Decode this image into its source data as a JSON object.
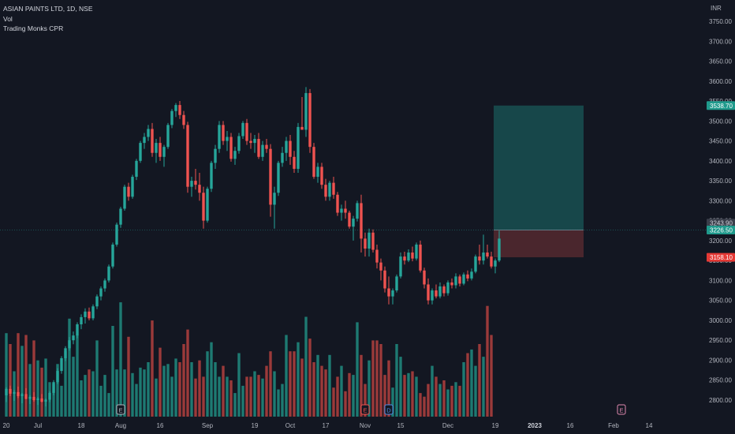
{
  "legend": {
    "symbol_line": "ASIAN PAINTS LTD, 1D, NSE",
    "volume_line": "Vol",
    "indicator_line": "Trading Monks CPR"
  },
  "colors": {
    "background": "#131722",
    "up": "#26a69a",
    "down": "#ef5350",
    "vol_up": "#1e7a72",
    "vol_down": "#9b3a3a",
    "target_zone": "#17474a",
    "stop_zone": "#4a262d",
    "axis_text": "#b2b5be"
  },
  "chart_data": {
    "type": "candlestick",
    "currency_label": "INR",
    "y_ticks": [
      "3750.00",
      "3700.00",
      "3650.00",
      "3600.00",
      "3550.00",
      "3500.00",
      "3450.00",
      "3400.00",
      "3350.00",
      "3300.00",
      "3250.00",
      "3200.00",
      "3150.00",
      "3100.00",
      "3050.00",
      "3000.00",
      "2950.00",
      "2900.00",
      "2850.00",
      "2800.00"
    ],
    "ylim": [
      2780,
      3775
    ],
    "x_ticks": [
      {
        "label": "20",
        "i": 0
      },
      {
        "label": "Jul",
        "i": 8
      },
      {
        "label": "18",
        "i": 19
      },
      {
        "label": "Aug",
        "i": 29
      },
      {
        "label": "16",
        "i": 39
      },
      {
        "label": "Sep",
        "i": 51
      },
      {
        "label": "19",
        "i": 63
      },
      {
        "label": "Oct",
        "i": 72
      },
      {
        "label": "17",
        "i": 81
      },
      {
        "label": "Nov",
        "i": 91
      },
      {
        "label": "15",
        "i": 100
      },
      {
        "label": "Dec",
        "i": 112
      },
      {
        "label": "19",
        "i": 124
      },
      {
        "label": "2023",
        "i": 134
      },
      {
        "label": "16",
        "i": 143
      },
      {
        "label": "Feb",
        "i": 154
      },
      {
        "label": "14",
        "i": 163
      }
    ],
    "candles": [
      [
        2812,
        2832,
        2795,
        2828
      ],
      [
        2828,
        2836,
        2810,
        2816
      ],
      [
        2816,
        2825,
        2798,
        2820
      ],
      [
        2820,
        2834,
        2805,
        2810
      ],
      [
        2810,
        2818,
        2792,
        2815
      ],
      [
        2815,
        2830,
        2802,
        2803
      ],
      [
        2803,
        2812,
        2790,
        2808
      ],
      [
        2808,
        2820,
        2796,
        2800
      ],
      [
        2800,
        2808,
        2788,
        2804
      ],
      [
        2804,
        2815,
        2794,
        2796
      ],
      [
        2796,
        2804,
        2784,
        2801
      ],
      [
        2801,
        2822,
        2795,
        2818
      ],
      [
        2818,
        2850,
        2812,
        2845
      ],
      [
        2845,
        2880,
        2840,
        2873
      ],
      [
        2873,
        2910,
        2866,
        2905
      ],
      [
        2905,
        2935,
        2898,
        2930
      ],
      [
        2930,
        2958,
        2924,
        2950
      ],
      [
        2950,
        2972,
        2940,
        2962
      ],
      [
        2962,
        2995,
        2955,
        2990
      ],
      [
        2990,
        3015,
        2978,
        3008
      ],
      [
        3008,
        3030,
        2992,
        3022
      ],
      [
        3022,
        3032,
        3000,
        3005
      ],
      [
        3005,
        3040,
        3000,
        3035
      ],
      [
        3035,
        3065,
        3028,
        3060
      ],
      [
        3060,
        3085,
        3050,
        3080
      ],
      [
        3080,
        3105,
        3072,
        3100
      ],
      [
        3100,
        3140,
        3095,
        3135
      ],
      [
        3135,
        3195,
        3130,
        3190
      ],
      [
        3190,
        3245,
        3185,
        3240
      ],
      [
        3240,
        3285,
        3232,
        3280
      ],
      [
        3280,
        3340,
        3275,
        3335
      ],
      [
        3335,
        3345,
        3300,
        3310
      ],
      [
        3310,
        3365,
        3305,
        3360
      ],
      [
        3360,
        3405,
        3352,
        3400
      ],
      [
        3400,
        3450,
        3395,
        3445
      ],
      [
        3445,
        3470,
        3430,
        3460
      ],
      [
        3460,
        3490,
        3450,
        3480
      ],
      [
        3480,
        3495,
        3410,
        3420
      ],
      [
        3420,
        3455,
        3395,
        3445
      ],
      [
        3445,
        3460,
        3400,
        3410
      ],
      [
        3410,
        3440,
        3385,
        3435
      ],
      [
        3435,
        3495,
        3430,
        3490
      ],
      [
        3490,
        3530,
        3482,
        3525
      ],
      [
        3525,
        3545,
        3510,
        3540
      ],
      [
        3540,
        3550,
        3505,
        3515
      ],
      [
        3515,
        3525,
        3480,
        3490
      ],
      [
        3490,
        3498,
        3320,
        3335
      ],
      [
        3335,
        3360,
        3310,
        3350
      ],
      [
        3350,
        3380,
        3328,
        3340
      ],
      [
        3340,
        3370,
        3300,
        3320
      ],
      [
        3320,
        3335,
        3230,
        3250
      ],
      [
        3250,
        3335,
        3245,
        3330
      ],
      [
        3330,
        3400,
        3322,
        3395
      ],
      [
        3395,
        3440,
        3380,
        3430
      ],
      [
        3430,
        3500,
        3420,
        3490
      ],
      [
        3490,
        3500,
        3440,
        3450
      ],
      [
        3450,
        3475,
        3425,
        3460
      ],
      [
        3460,
        3470,
        3398,
        3405
      ],
      [
        3405,
        3435,
        3390,
        3425
      ],
      [
        3425,
        3470,
        3418,
        3462
      ],
      [
        3462,
        3500,
        3455,
        3495
      ],
      [
        3495,
        3505,
        3440,
        3450
      ],
      [
        3450,
        3470,
        3430,
        3445
      ],
      [
        3445,
        3465,
        3420,
        3455
      ],
      [
        3455,
        3470,
        3405,
        3410
      ],
      [
        3410,
        3450,
        3400,
        3440
      ],
      [
        3440,
        3455,
        3420,
        3430
      ],
      [
        3430,
        3442,
        3260,
        3290
      ],
      [
        3290,
        3335,
        3230,
        3320
      ],
      [
        3320,
        3400,
        3312,
        3395
      ],
      [
        3395,
        3435,
        3385,
        3420
      ],
      [
        3420,
        3460,
        3400,
        3450
      ],
      [
        3450,
        3465,
        3390,
        3410
      ],
      [
        3410,
        3425,
        3370,
        3380
      ],
      [
        3380,
        3495,
        3370,
        3485
      ],
      [
        3485,
        3560,
        3478,
        3478
      ],
      [
        3478,
        3585,
        3460,
        3570
      ],
      [
        3570,
        3580,
        3420,
        3435
      ],
      [
        3435,
        3445,
        3355,
        3360
      ],
      [
        3360,
        3395,
        3345,
        3385
      ],
      [
        3385,
        3395,
        3330,
        3340
      ],
      [
        3340,
        3355,
        3300,
        3310
      ],
      [
        3310,
        3350,
        3300,
        3345
      ],
      [
        3345,
        3360,
        3305,
        3315
      ],
      [
        3315,
        3322,
        3262,
        3270
      ],
      [
        3270,
        3290,
        3250,
        3280
      ],
      [
        3280,
        3300,
        3255,
        3270
      ],
      [
        3270,
        3275,
        3230,
        3235
      ],
      [
        3235,
        3262,
        3200,
        3255
      ],
      [
        3255,
        3300,
        3248,
        3294
      ],
      [
        3294,
        3315,
        3170,
        3205
      ],
      [
        3205,
        3220,
        3160,
        3180
      ],
      [
        3180,
        3230,
        3160,
        3220
      ],
      [
        3220,
        3228,
        3170,
        3177
      ],
      [
        3177,
        3190,
        3130,
        3145
      ],
      [
        3145,
        3155,
        3100,
        3125
      ],
      [
        3125,
        3135,
        3070,
        3080
      ],
      [
        3080,
        3110,
        3040,
        3060
      ],
      [
        3060,
        3080,
        3040,
        3075
      ],
      [
        3075,
        3115,
        3070,
        3110
      ],
      [
        3110,
        3170,
        3105,
        3160
      ],
      [
        3160,
        3172,
        3140,
        3150
      ],
      [
        3150,
        3178,
        3146,
        3170
      ],
      [
        3170,
        3185,
        3148,
        3155
      ],
      [
        3155,
        3195,
        3150,
        3190
      ],
      [
        3190,
        3200,
        3120,
        3125
      ],
      [
        3125,
        3132,
        3080,
        3090
      ],
      [
        3090,
        3105,
        3040,
        3050
      ],
      [
        3050,
        3080,
        3040,
        3075
      ],
      [
        3075,
        3090,
        3055,
        3060
      ],
      [
        3060,
        3095,
        3055,
        3085
      ],
      [
        3085,
        3090,
        3060,
        3068
      ],
      [
        3068,
        3100,
        3062,
        3095
      ],
      [
        3095,
        3105,
        3080,
        3088
      ],
      [
        3088,
        3118,
        3080,
        3110
      ],
      [
        3110,
        3115,
        3085,
        3092
      ],
      [
        3092,
        3120,
        3088,
        3115
      ],
      [
        3115,
        3125,
        3098,
        3105
      ],
      [
        3105,
        3130,
        3100,
        3122
      ],
      [
        3122,
        3165,
        3118,
        3160
      ],
      [
        3160,
        3190,
        3140,
        3150
      ],
      [
        3150,
        3215,
        3140,
        3170
      ],
      [
        3170,
        3190,
        3155,
        3160
      ],
      [
        3160,
        3172,
        3130,
        3135
      ],
      [
        3135,
        3155,
        3118,
        3150
      ],
      [
        3150,
        3225,
        3146,
        3205
      ]
    ],
    "volume": [
      0.46,
      0.4,
      0.25,
      0.46,
      0.39,
      0.45,
      0.29,
      0.42,
      0.31,
      0.27,
      0.32,
      0.19,
      0.18,
      0.29,
      0.17,
      0.36,
      0.54,
      0.33,
      0.45,
      0.2,
      0.23,
      0.26,
      0.25,
      0.42,
      0.17,
      0.23,
      0.13,
      0.5,
      0.26,
      0.63,
      0.26,
      0.44,
      0.24,
      0.18,
      0.27,
      0.26,
      0.3,
      0.53,
      0.21,
      0.38,
      0.28,
      0.29,
      0.22,
      0.32,
      0.3,
      0.4,
      0.48,
      0.3,
      0.21,
      0.31,
      0.22,
      0.36,
      0.41,
      0.3,
      0.22,
      0.28,
      0.22,
      0.2,
      0.13,
      0.35,
      0.17,
      0.22,
      0.22,
      0.25,
      0.23,
      0.21,
      0.28,
      0.36,
      0.25,
      0.15,
      0.18,
      0.45,
      0.36,
      0.36,
      0.41,
      0.32,
      0.55,
      0.43,
      0.3,
      0.34,
      0.28,
      0.26,
      0.34,
      0.16,
      0.22,
      0.28,
      0.14,
      0.24,
      0.23,
      0.52,
      0.34,
      0.18,
      0.31,
      0.42,
      0.42,
      0.4,
      0.23,
      0.31,
      0.16,
      0.4,
      0.33,
      0.23,
      0.24,
      0.25,
      0.22,
      0.13,
      0.11,
      0.18,
      0.28,
      0.22,
      0.18,
      0.2,
      0.15,
      0.17,
      0.19,
      0.17,
      0.3,
      0.35,
      0.37,
      0.28,
      0.4,
      0.33,
      0.61,
      0.45
    ],
    "vol_scale": [
      1,
      1,
      1,
      1,
      1,
      1,
      1,
      1,
      1,
      1,
      1,
      1,
      1,
      1,
      1,
      1,
      1,
      1,
      1,
      1,
      1,
      1,
      1,
      1,
      1,
      1,
      1,
      1,
      1,
      1,
      1,
      1,
      1,
      1,
      1,
      1,
      1,
      1,
      1,
      1,
      1,
      1,
      1,
      1,
      1,
      1,
      1,
      1,
      1,
      1,
      1,
      1,
      1,
      1,
      1,
      1,
      1,
      1,
      1,
      1,
      1,
      1,
      1,
      1,
      1,
      1,
      1,
      1,
      1,
      1,
      1,
      1,
      1,
      1,
      1,
      1,
      1,
      1,
      1,
      1,
      1,
      1,
      1,
      1,
      1,
      1,
      1,
      1,
      1,
      1,
      1,
      1,
      1,
      1,
      1,
      1,
      1,
      1,
      1,
      1,
      1,
      1,
      1,
      1,
      1,
      1,
      1,
      1,
      1,
      1,
      1,
      1,
      1,
      1,
      1,
      1,
      1,
      1,
      1,
      1,
      1,
      1,
      1,
      1
    ],
    "position": {
      "entry": 3226.5,
      "target": 3538.7,
      "stop": 3158.1,
      "last": 3243.9,
      "start_i": 124,
      "end_i": 146,
      "labels": {
        "target": "3538.70",
        "last": "3243.90",
        "entry": "3226.50",
        "stop": "3158.10"
      }
    },
    "events": [
      {
        "i": 29,
        "letter": "E",
        "color": "#b2b5be"
      },
      {
        "i": 91,
        "letter": "E",
        "color": "#ef5350"
      },
      {
        "i": 97,
        "letter": "D",
        "color": "#4f8fea"
      },
      {
        "i": 156,
        "letter": "E",
        "color": "#e08ab0"
      }
    ]
  }
}
